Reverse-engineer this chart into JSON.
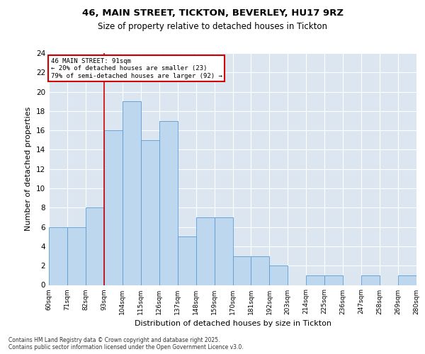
{
  "title1": "46, MAIN STREET, TICKTON, BEVERLEY, HU17 9RZ",
  "title2": "Size of property relative to detached houses in Tickton",
  "xlabel": "Distribution of detached houses by size in Tickton",
  "ylabel": "Number of detached properties",
  "bin_labels": [
    "60sqm",
    "71sqm",
    "82sqm",
    "93sqm",
    "104sqm",
    "115sqm",
    "126sqm",
    "137sqm",
    "148sqm",
    "159sqm",
    "170sqm",
    "181sqm",
    "192sqm",
    "203sqm",
    "214sqm",
    "225sqm",
    "236sqm",
    "247sqm",
    "258sqm",
    "269sqm",
    "280sqm"
  ],
  "bar_values": [
    6,
    6,
    8,
    16,
    19,
    15,
    17,
    5,
    7,
    7,
    3,
    3,
    2,
    0,
    1,
    1,
    0,
    1,
    0,
    1
  ],
  "bar_color": "#BDD7EE",
  "bar_edge_color": "#5B9BD5",
  "background_color": "#DCE6F1",
  "red_line_x": 2.5,
  "annotation_text": "46 MAIN STREET: 91sqm\n← 20% of detached houses are smaller (23)\n79% of semi-detached houses are larger (92) →",
  "annotation_box_facecolor": "#ffffff",
  "annotation_box_edgecolor": "#cc0000",
  "footer_text": "Contains HM Land Registry data © Crown copyright and database right 2025.\nContains public sector information licensed under the Open Government Licence v3.0.",
  "ylim": [
    0,
    24
  ],
  "yticks": [
    0,
    2,
    4,
    6,
    8,
    10,
    12,
    14,
    16,
    18,
    20,
    22,
    24
  ]
}
